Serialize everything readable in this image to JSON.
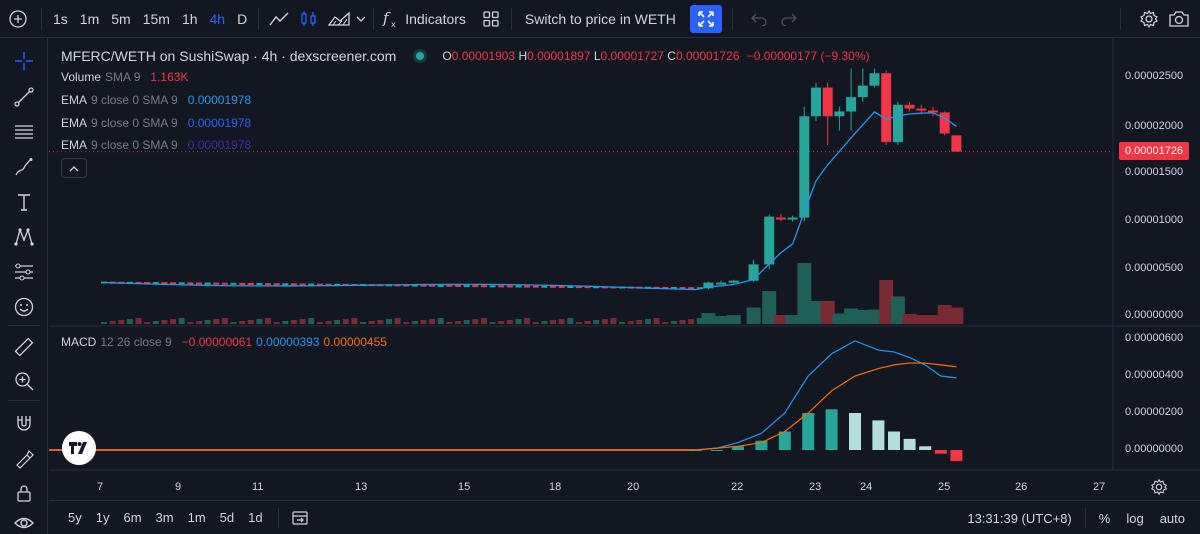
{
  "toolbar": {
    "intervals": [
      "1s",
      "1m",
      "5m",
      "15m",
      "1h",
      "4h",
      "D"
    ],
    "active_interval": "4h",
    "indicators_label": "Indicators",
    "switch_label": "Switch to price in WETH",
    "icons": [
      "plus-icon",
      "line-chart-icon",
      "candle-chart-icon",
      "area-chart-icon",
      "chevron-down-icon",
      "fx-icon",
      "layouts-icon",
      "fullscreen-icon",
      "undo-icon",
      "redo-icon",
      "settings-icon",
      "camera-icon"
    ]
  },
  "legend": {
    "title": "MFERC/WETH on SushiSwap · 4h · dexscreener.com",
    "o_label": "O",
    "o_value": "0.00001903",
    "h_label": "H",
    "h_value": "0.00001897",
    "l_label": "L",
    "l_value": "0.00001727",
    "c_label": "C",
    "c_value": "0.00001726",
    "change": "−0.00000177 (−9.30%)",
    "volume_label": "Volume",
    "volume_params": "SMA 9",
    "volume_value": "1.163K",
    "ema": [
      {
        "label": "EMA",
        "params": "9 close 0 SMA 9",
        "value": "0.00001978",
        "color": "#2196f3"
      },
      {
        "label": "EMA",
        "params": "9 close 0 SMA 9",
        "value": "0.00001978",
        "color": "#2962ff"
      },
      {
        "label": "EMA",
        "params": "9 close 0 SMA 9",
        "value": "0.00001978",
        "color": "#311b92"
      }
    ],
    "macd_label": "MACD",
    "macd_params": "12 26 close 9",
    "macd_hist": "−0.00000061",
    "macd_line": "0.00000393",
    "macd_signal": "0.00000455"
  },
  "price_axis": [
    "0.00002500",
    "0.00002000",
    "0.00001500",
    "0.00001000",
    "0.00000500",
    "0.00000000"
  ],
  "current_price": "0.00001726",
  "macd_axis": [
    "0.00000600",
    "0.00000400",
    "0.00000200",
    "0.00000000"
  ],
  "time_axis": [
    "7",
    "9",
    "11",
    "13",
    "15",
    "18",
    "20",
    "22",
    "23",
    "24",
    "25",
    "26",
    "27"
  ],
  "bottom": {
    "ranges": [
      "5y",
      "1y",
      "6m",
      "3m",
      "1m",
      "5d",
      "1d"
    ],
    "clock": "13:31:39 (UTC+8)",
    "percent": "%",
    "log": "log",
    "auto": "auto"
  },
  "colors": {
    "up": "#26a69a",
    "down": "#f23645",
    "ema": "#2196f3",
    "signal": "#ff6d00",
    "accent": "#2962ff"
  },
  "chart_data": {
    "type": "candlestick",
    "series_main": {
      "candles": [
        {
          "t": 21.3,
          "o": 3e-06,
          "h": 3.7e-06,
          "l": 2.9e-06,
          "c": 3.6e-06
        },
        {
          "t": 21.6,
          "o": 3.6e-06,
          "h": 3.8e-06,
          "l": 3.4e-06,
          "c": 3.6e-06
        },
        {
          "t": 21.9,
          "o": 3.6e-06,
          "h": 3.9e-06,
          "l": 3.5e-06,
          "c": 3.8e-06
        },
        {
          "t": 22.2,
          "o": 3.8e-06,
          "h": 6e-06,
          "l": 3.7e-06,
          "c": 5.5e-06
        },
        {
          "t": 22.4,
          "o": 5.5e-06,
          "h": 1.07e-05,
          "l": 5e-06,
          "c": 1.05e-05
        },
        {
          "t": 22.55,
          "o": 1.04e-05,
          "h": 1.08e-05,
          "l": 1e-05,
          "c": 1.02e-05
        },
        {
          "t": 22.7,
          "o": 1.02e-05,
          "h": 1.06e-05,
          "l": 1e-05,
          "c": 1.04e-05
        },
        {
          "t": 22.85,
          "o": 1.04e-05,
          "h": 2.2e-05,
          "l": 1e-05,
          "c": 2.1e-05
        },
        {
          "t": 23.0,
          "o": 2.1e-05,
          "h": 2.45e-05,
          "l": 2.05e-05,
          "c": 2.4e-05
        },
        {
          "t": 23.15,
          "o": 2.4e-05,
          "h": 2.45e-05,
          "l": 1.8e-05,
          "c": 2.1e-05
        },
        {
          "t": 23.3,
          "o": 2.1e-05,
          "h": 2.2e-05,
          "l": 1.95e-05,
          "c": 2.15e-05
        },
        {
          "t": 23.45,
          "o": 2.15e-05,
          "h": 2.6e-05,
          "l": 1.95e-05,
          "c": 2.3e-05
        },
        {
          "t": 23.6,
          "o": 2.3e-05,
          "h": 2.6e-05,
          "l": 2.25e-05,
          "c": 2.42e-05
        },
        {
          "t": 23.75,
          "o": 2.42e-05,
          "h": 2.6e-05,
          "l": 2.4e-05,
          "c": 2.55e-05
        },
        {
          "t": 23.9,
          "o": 2.55e-05,
          "h": 2.58e-05,
          "l": 1.8e-05,
          "c": 1.83e-05
        },
        {
          "t": 24.05,
          "o": 1.83e-05,
          "h": 2.25e-05,
          "l": 1.8e-05,
          "c": 2.22e-05
        },
        {
          "t": 24.2,
          "o": 2.22e-05,
          "h": 2.25e-05,
          "l": 2.15e-05,
          "c": 2.18e-05
        },
        {
          "t": 24.35,
          "o": 2.18e-05,
          "h": 2.22e-05,
          "l": 2.12e-05,
          "c": 2.16e-05
        },
        {
          "t": 24.5,
          "o": 2.16e-05,
          "h": 2.2e-05,
          "l": 2.1e-05,
          "c": 2.14e-05
        },
        {
          "t": 24.65,
          "o": 2.14e-05,
          "h": 2.15e-05,
          "l": 1.9e-05,
          "c": 1.92e-05
        },
        {
          "t": 24.8,
          "o": 1.9e-05,
          "h": 1.9e-05,
          "l": 1.73e-05,
          "c": 1.73e-05
        }
      ],
      "flat_price_start": 3.6e-06,
      "flat_price_end": 3e-06
    },
    "volume_ylim": [
      0,
      1
    ],
    "macd": {
      "x": [
        21.0,
        21.5,
        22.0,
        22.3,
        22.6,
        22.9,
        23.2,
        23.5,
        23.8,
        24.0,
        24.2,
        24.4,
        24.6,
        24.8
      ],
      "macd_line": [
        0.0,
        1e-07,
        4e-07,
        9e-07,
        2e-06,
        4e-06,
        5.2e-06,
        5.9e-06,
        5.4e-06,
        5.3e-06,
        5e-06,
        4.6e-06,
        4e-06,
        3.9e-06
      ],
      "signal_line": [
        0.0,
        1e-07,
        2e-07,
        4e-07,
        1e-06,
        2e-06,
        3.2e-06,
        4e-06,
        4.4e-06,
        4.6e-06,
        4.7e-06,
        4.7e-06,
        4.6e-06,
        4.5e-06
      ],
      "histogram": [
        0.0,
        0.0,
        2e-07,
        5e-07,
        1e-06,
        2e-06,
        2.2e-06,
        2e-06,
        1.6e-06,
        1e-06,
        6e-07,
        2e-07,
        -2e-07,
        -6e-07
      ]
    }
  }
}
